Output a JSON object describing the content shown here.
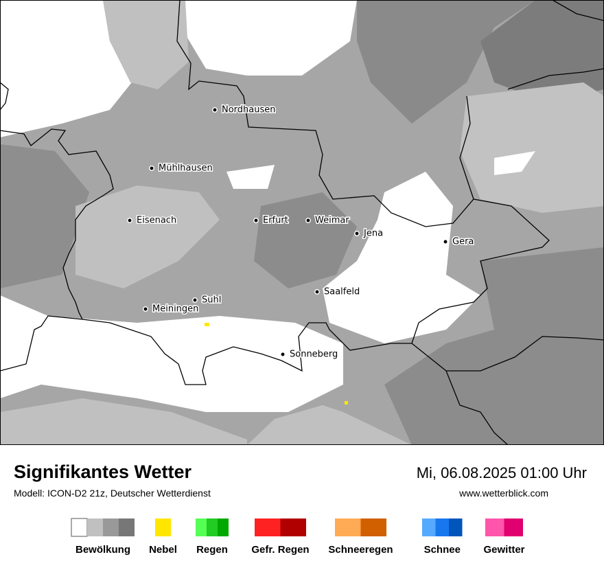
{
  "header": {
    "title": "Signifikantes Wetter",
    "subtitle": "Modell: ICON-D2 21z, Deutscher Wetterdienst",
    "datetime": "Mi, 06.08.2025 01:00 Uhr",
    "website": "www.wetterblick.com"
  },
  "cities": [
    "Nordhausen",
    "Mühlhausen",
    "Eisenach",
    "Erfurt",
    "Weimar",
    "Jena",
    "Gera",
    "Saalfeld",
    "Suhl",
    "Meiningen",
    "Sonneberg"
  ],
  "legend": [
    {
      "label": "Bewölkung",
      "colors": [
        "#ffffff",
        "#c0c0c0",
        "#999999",
        "#777777"
      ]
    },
    {
      "label": "Nebel",
      "colors": [
        "#ffe600"
      ]
    },
    {
      "label": "Regen",
      "colors": [
        "#55ff55",
        "#22cc22",
        "#00a800"
      ]
    },
    {
      "label": "Gefr. Regen",
      "colors": [
        "#ff2222",
        "#b00000"
      ]
    },
    {
      "label": "Schneeregen",
      "colors": [
        "#ffaa55",
        "#d06000"
      ]
    },
    {
      "label": "Schnee",
      "colors": [
        "#55aaff",
        "#1777ee",
        "#0055bb"
      ]
    },
    {
      "label": "Gewitter",
      "colors": [
        "#ff55aa",
        "#e00070"
      ]
    }
  ]
}
